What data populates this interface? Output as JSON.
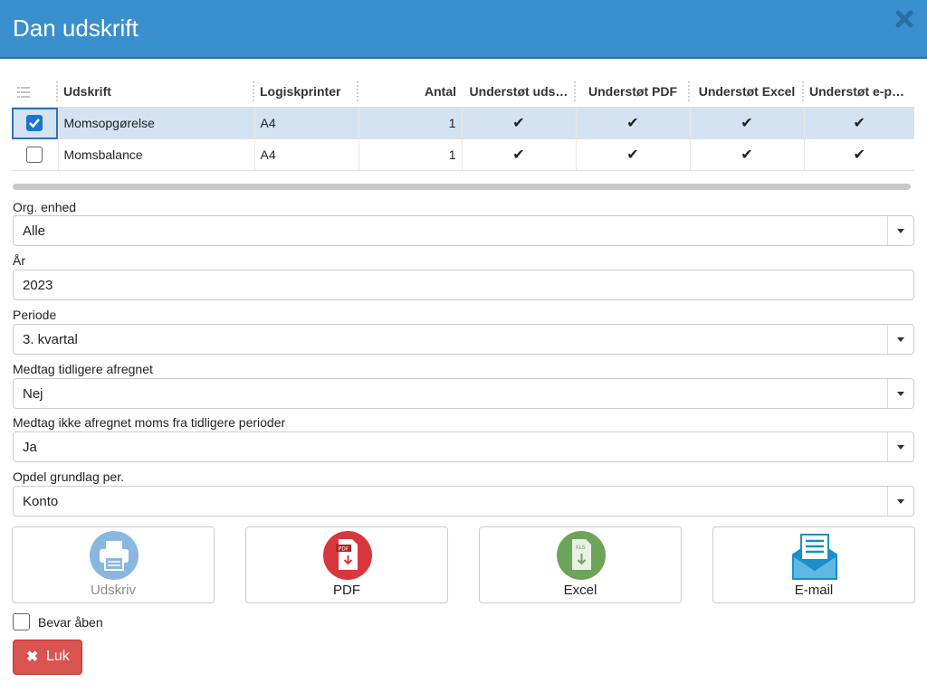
{
  "dialog": {
    "title": "Dan udskrift",
    "close_icon": "close-icon"
  },
  "table": {
    "headers": [
      "Udskrift",
      "Logiskprinter",
      "Antal",
      "Understøt uds…",
      "Understøt PDF",
      "Understøt Excel",
      "Understøt e-post"
    ],
    "rows": [
      {
        "selected": true,
        "name": "Momsopgørelse",
        "printer": "A4",
        "count": "1",
        "supports": [
          "✔",
          "✔",
          "✔",
          "✔"
        ]
      },
      {
        "selected": false,
        "name": "Momsbalance",
        "printer": "A4",
        "count": "1",
        "supports": [
          "✔",
          "✔",
          "✔",
          "✔"
        ]
      }
    ]
  },
  "fields": {
    "org": {
      "label": "Org. enhed",
      "value": "Alle"
    },
    "year": {
      "label": "År",
      "value": "2023"
    },
    "period": {
      "label": "Periode",
      "value": "3. kvartal"
    },
    "include_prev": {
      "label": "Medtag tidligere afregnet",
      "value": "Nej"
    },
    "include_unsettled": {
      "label": "Medtag ikke afregnet moms fra tidligere perioder",
      "value": "Ja"
    },
    "split": {
      "label": "Opdel grundlag per.",
      "value": "Konto"
    }
  },
  "actions": {
    "print": "Udskriv",
    "pdf": "PDF",
    "excel": "Excel",
    "email": "E-mail"
  },
  "keep_open": {
    "label": "Bevar åben",
    "checked": false
  },
  "close_button": {
    "label": "Luk"
  },
  "colors": {
    "header": "#3a8fcd",
    "selected_row": "#d4e3f1",
    "print_icon": "#8ab7e0",
    "pdf_icon": "#d9363e",
    "excel_icon": "#6ea35a",
    "email_icon": "#1b8fc7",
    "close_button": "#d9534f"
  }
}
